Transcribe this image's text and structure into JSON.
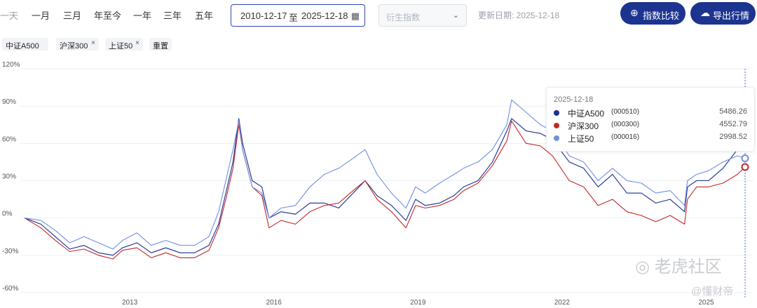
{
  "toolbar": {
    "ranges": [
      "一天",
      "一月",
      "三月",
      "年至今",
      "一年",
      "三年",
      "五年"
    ],
    "date_start": "2010-12-17",
    "date_sep": "至",
    "date_end": "2025-12-18",
    "derived_placeholder": "衍生指数",
    "updated": "更新日期: 2025-12-18",
    "compare_btn": "指数比较",
    "export_btn": "导出行情"
  },
  "chips": [
    {
      "label": "中证A500"
    },
    {
      "label": "沪深300"
    },
    {
      "label": "上证50"
    },
    {
      "label": "重置"
    }
  ],
  "tooltip": {
    "date": "2025-12-18",
    "rows": [
      {
        "name": "中证A500",
        "code": "(000510)",
        "value": "5486.26",
        "color": "#1a2f8e"
      },
      {
        "name": "沪深300",
        "code": "(000300)",
        "value": "4552.79",
        "color": "#c42828"
      },
      {
        "name": "上证50",
        "code": "(000016)",
        "value": "2998.52",
        "color": "#6f8fe0"
      }
    ]
  },
  "watermark": {
    "text1": "老虎社区",
    "text2": "@懂财帝"
  },
  "chart_data": {
    "type": "line",
    "y_ticks": [
      "120%",
      "90%",
      "60%",
      "30%",
      "0%",
      "-30%",
      "-60%"
    ],
    "ylim": [
      -60,
      120
    ],
    "x_ticks": [
      "2013",
      "2016",
      "2019",
      "2022",
      "2025"
    ],
    "x": [
      2010.96,
      2011.3,
      2011.6,
      2011.9,
      2012.2,
      2012.5,
      2012.8,
      2013.0,
      2013.3,
      2013.6,
      2013.9,
      2014.2,
      2014.5,
      2014.8,
      2015.0,
      2015.15,
      2015.3,
      2015.42,
      2015.5,
      2015.7,
      2015.9,
      2016.05,
      2016.3,
      2016.6,
      2016.9,
      2017.2,
      2017.5,
      2017.8,
      2018.05,
      2018.3,
      2018.6,
      2018.9,
      2019.1,
      2019.3,
      2019.6,
      2019.9,
      2020.1,
      2020.4,
      2020.7,
      2021.0,
      2021.1,
      2021.4,
      2021.7,
      2021.95,
      2022.3,
      2022.6,
      2022.9,
      2023.2,
      2023.5,
      2023.8,
      2024.1,
      2024.4,
      2024.7,
      2024.76,
      2024.95,
      2025.2,
      2025.5,
      2025.8,
      2025.96
    ],
    "series": [
      {
        "name": "中证A500",
        "color": "#1a2f8e",
        "values": [
          0,
          -5,
          -15,
          -25,
          -22,
          -28,
          -30,
          -24,
          -20,
          -28,
          -24,
          -28,
          -28,
          -22,
          -5,
          20,
          45,
          80,
          60,
          30,
          25,
          0,
          5,
          3,
          12,
          12,
          8,
          20,
          30,
          18,
          10,
          -2,
          15,
          10,
          12,
          18,
          25,
          30,
          45,
          70,
          80,
          70,
          68,
          63,
          45,
          40,
          25,
          35,
          20,
          20,
          12,
          15,
          5,
          25,
          30,
          30,
          40,
          55,
          59
        ]
      },
      {
        "name": "沪深300",
        "color": "#c42828",
        "values": [
          0,
          -8,
          -18,
          -27,
          -25,
          -30,
          -33,
          -26,
          -24,
          -32,
          -28,
          -32,
          -32,
          -26,
          -8,
          15,
          40,
          75,
          55,
          25,
          18,
          -8,
          -2,
          -5,
          5,
          10,
          12,
          22,
          30,
          15,
          5,
          -8,
          10,
          8,
          10,
          15,
          22,
          28,
          42,
          62,
          78,
          60,
          58,
          50,
          30,
          25,
          10,
          15,
          5,
          2,
          -3,
          2,
          -5,
          15,
          25,
          25,
          28,
          35,
          41
        ]
      },
      {
        "name": "上证50",
        "color": "#6f8fe0",
        "values": [
          0,
          -2,
          -10,
          -20,
          -15,
          -20,
          -25,
          -18,
          -12,
          -22,
          -18,
          -22,
          -22,
          -15,
          5,
          30,
          55,
          78,
          55,
          25,
          20,
          0,
          8,
          10,
          25,
          35,
          40,
          48,
          55,
          35,
          20,
          8,
          25,
          20,
          28,
          35,
          40,
          45,
          55,
          75,
          95,
          85,
          75,
          70,
          50,
          45,
          30,
          40,
          30,
          28,
          20,
          22,
          10,
          30,
          35,
          38,
          45,
          50,
          48
        ]
      }
    ]
  }
}
